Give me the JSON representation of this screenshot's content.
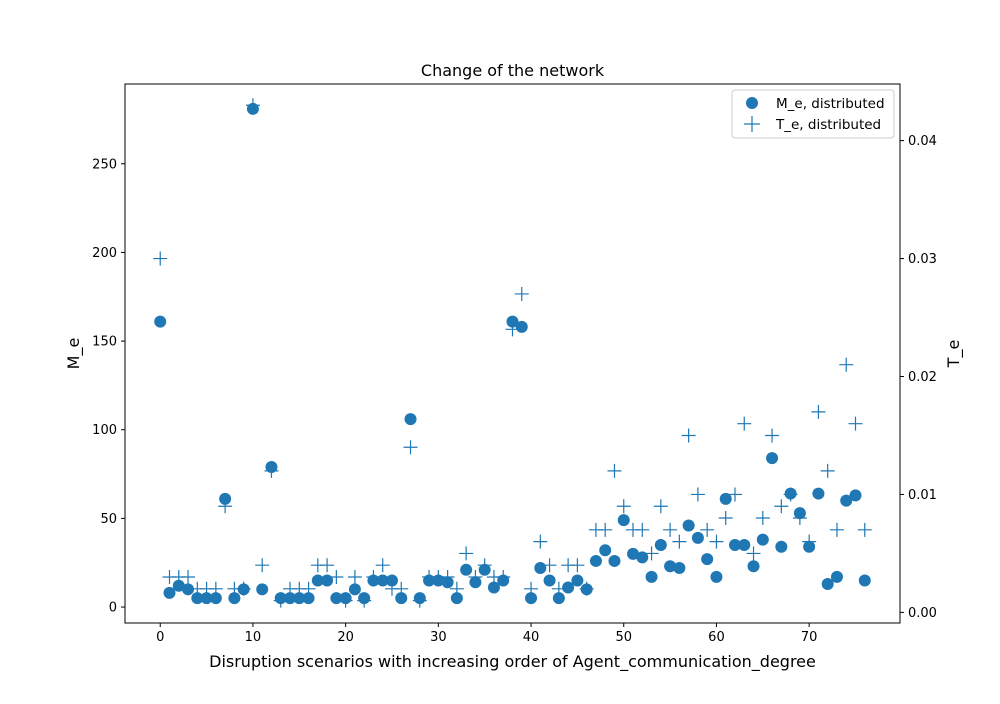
{
  "chart_data": {
    "type": "scatter",
    "title": "Change of the network",
    "xlabel": "Disruption scenarios with increasing order of Agent_communication_degree",
    "ylabel": "M_e",
    "y2label": "T_e",
    "xlim": [
      -3.8,
      79.8
    ],
    "ylim": [
      -9,
      295
    ],
    "y2lim": [
      -0.0009,
      0.0448
    ],
    "xticks": [
      0,
      10,
      20,
      30,
      40,
      50,
      60,
      70
    ],
    "yticks": [
      0,
      50,
      100,
      150,
      200,
      250
    ],
    "y2ticks": [
      0.0,
      0.01,
      0.02,
      0.03,
      0.04
    ],
    "y2tick_labels": [
      "0.00",
      "0.01",
      "0.02",
      "0.03",
      "0.04"
    ],
    "legend": {
      "position": "top-right"
    },
    "color": "#1f77b4",
    "series": [
      {
        "name": "M_e, distributed",
        "marker": "circle",
        "axis": "left",
        "x": [
          0,
          1,
          2,
          3,
          4,
          5,
          6,
          7,
          8,
          9,
          10,
          11,
          12,
          13,
          14,
          15,
          16,
          17,
          18,
          19,
          20,
          21,
          22,
          23,
          24,
          25,
          26,
          27,
          28,
          29,
          30,
          31,
          32,
          33,
          34,
          35,
          36,
          37,
          38,
          39,
          40,
          41,
          42,
          43,
          44,
          45,
          46,
          47,
          48,
          49,
          50,
          51,
          52,
          53,
          54,
          55,
          56,
          57,
          58,
          59,
          60,
          61,
          62,
          63,
          64,
          65,
          66,
          67,
          68,
          69,
          70,
          71,
          72,
          73,
          74,
          75,
          76
        ],
        "y": [
          161,
          8,
          12,
          10,
          5,
          5,
          5,
          61,
          5,
          10,
          281,
          10,
          79,
          5,
          5,
          5,
          5,
          15,
          15,
          5,
          5,
          10,
          5,
          15,
          15,
          15,
          5,
          106,
          5,
          15,
          15,
          14,
          5,
          21,
          14,
          21,
          11,
          15,
          161,
          158,
          5,
          22,
          15,
          5,
          11,
          15,
          10,
          26,
          32,
          26,
          49,
          30,
          28,
          17,
          35,
          23,
          22,
          46,
          39,
          27,
          17,
          61,
          35,
          35,
          23,
          38,
          84,
          34,
          64,
          53,
          34,
          64,
          13,
          17,
          60,
          63,
          15
        ]
      },
      {
        "name": "T_e, distributed",
        "marker": "plus",
        "axis": "right",
        "x": [
          0,
          1,
          2,
          3,
          4,
          5,
          6,
          7,
          8,
          9,
          10,
          11,
          12,
          13,
          14,
          15,
          16,
          17,
          18,
          19,
          20,
          21,
          22,
          23,
          24,
          25,
          26,
          27,
          28,
          29,
          30,
          31,
          32,
          33,
          34,
          35,
          36,
          37,
          38,
          39,
          40,
          41,
          42,
          43,
          44,
          45,
          46,
          47,
          48,
          49,
          50,
          51,
          52,
          53,
          54,
          55,
          56,
          57,
          58,
          59,
          60,
          61,
          62,
          63,
          64,
          65,
          66,
          67,
          68,
          69,
          70,
          71,
          72,
          73,
          74,
          75,
          76
        ],
        "y": [
          0.03,
          0.003,
          0.003,
          0.003,
          0.002,
          0.002,
          0.002,
          0.009,
          0.002,
          0.002,
          0.043,
          0.004,
          0.012,
          0.001,
          0.002,
          0.002,
          0.002,
          0.004,
          0.004,
          0.003,
          0.001,
          0.003,
          0.001,
          0.003,
          0.004,
          0.002,
          0.002,
          0.014,
          0.001,
          0.003,
          0.003,
          0.003,
          0.002,
          0.005,
          0.003,
          0.004,
          0.003,
          0.003,
          0.024,
          0.027,
          0.002,
          0.006,
          0.004,
          0.002,
          0.004,
          0.004,
          0.002,
          0.007,
          0.007,
          0.012,
          0.009,
          0.007,
          0.007,
          0.005,
          0.009,
          0.007,
          0.006,
          0.015,
          0.01,
          0.007,
          0.006,
          0.008,
          0.01,
          0.016,
          0.005,
          0.008,
          0.015,
          0.009,
          0.01,
          0.008,
          0.006,
          0.017,
          0.012,
          0.007,
          0.021,
          0.016,
          0.007
        ]
      }
    ]
  }
}
